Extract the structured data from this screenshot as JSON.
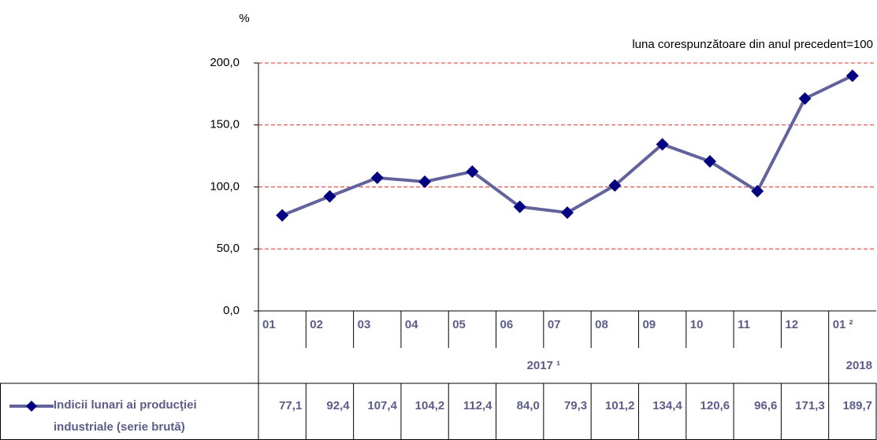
{
  "chart_data": {
    "type": "line",
    "y_unit": "%",
    "annotation": "luna corespunzătoare din anul precedent=100",
    "categories": [
      "01",
      "02",
      "03",
      "04",
      "05",
      "06",
      "07",
      "08",
      "09",
      "10",
      "11",
      "12",
      "01 ²"
    ],
    "groups": [
      {
        "label": "2017 ¹",
        "span": 12
      },
      {
        "label": "2018",
        "span": 1
      }
    ],
    "series": [
      {
        "name": "Indicii lunari ai producţiei industriale (serie brută)",
        "color": "#62629c",
        "marker_color": "#000080",
        "values": [
          77.1,
          92.4,
          107.4,
          104.2,
          112.4,
          84.0,
          79.3,
          101.2,
          134.4,
          120.6,
          96.6,
          171.3,
          189.7
        ],
        "value_labels": [
          "77,1",
          "92,4",
          "107,4",
          "104,2",
          "112,4",
          "84,0",
          "79,3",
          "101,2",
          "134,4",
          "120,6",
          "96,6",
          "171,3",
          "189,7"
        ]
      }
    ],
    "ylim": [
      0,
      200
    ],
    "yticks": [
      {
        "value": 0,
        "label": "0,0"
      },
      {
        "value": 50,
        "label": "50,0"
      },
      {
        "value": 100,
        "label": "100,0"
      },
      {
        "value": 150,
        "label": "150,0"
      },
      {
        "value": 200,
        "label": "200,0"
      }
    ],
    "grid": true,
    "grid_color": "#e03030"
  }
}
